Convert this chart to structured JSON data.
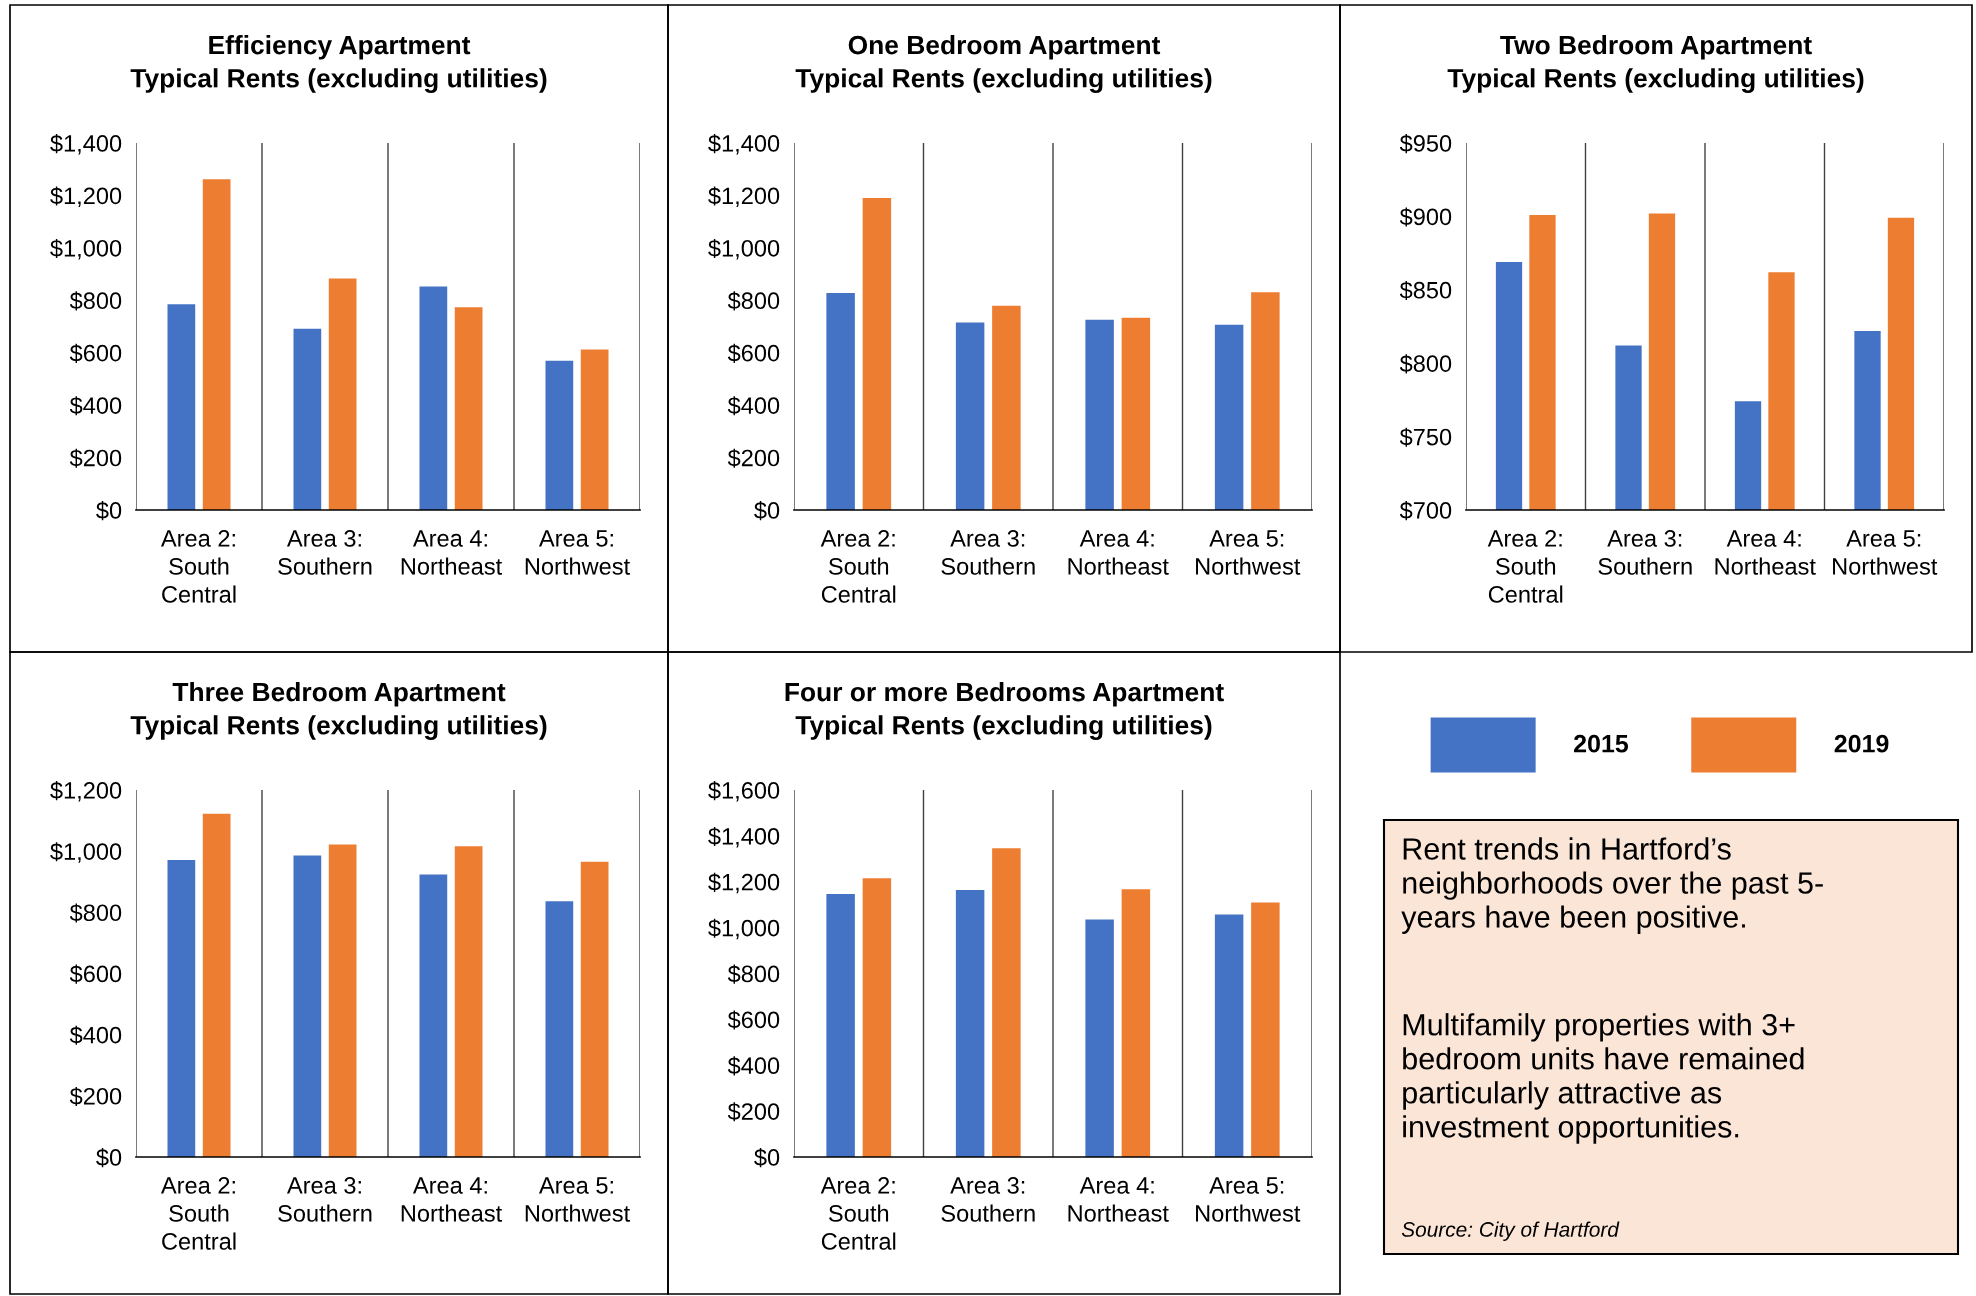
{
  "chart_data": [
    {
      "type": "bar",
      "title": "Efficiency Apartment\nTypical Rents (excluding utilities)",
      "categories": [
        "Area 2:\nSouth\nCentral",
        "Area 3:\nSouthern",
        "Area 4:\nNortheast",
        "Area 5:\nNorthwest"
      ],
      "series": [
        {
          "name": "2015",
          "color": "#4472c4",
          "values": [
            785,
            691,
            853,
            569
          ]
        },
        {
          "name": "2019",
          "color": "#ed7d31",
          "values": [
            1262,
            883,
            773,
            612
          ]
        }
      ],
      "ylim": [
        0,
        1400
      ],
      "yticks": [
        {
          "value": 0,
          "label": "$0"
        },
        {
          "value": 200,
          "label": "$200"
        },
        {
          "value": 400,
          "label": "$400"
        },
        {
          "value": 600,
          "label": "$600"
        },
        {
          "value": 800,
          "label": "$800"
        },
        {
          "value": 1000,
          "label": "$1,000"
        },
        {
          "value": 1200,
          "label": "$1,200"
        },
        {
          "value": 1400,
          "label": "$1,400"
        }
      ],
      "grid": "x",
      "legend": "bottom right"
    },
    {
      "type": "bar",
      "title": "One Bedroom Apartment\nTypical Rents (excluding utilities)",
      "categories": [
        "Area 2:\nSouth\nCentral",
        "Area 3:\nSouthern",
        "Area 4:\nNortheast",
        "Area 5:\nNorthwest"
      ],
      "series": [
        {
          "name": "2015",
          "color": "#4472c4",
          "values": [
            828,
            715,
            726,
            707
          ]
        },
        {
          "name": "2019",
          "color": "#ed7d31",
          "values": [
            1190,
            779,
            733,
            831
          ]
        }
      ],
      "ylim": [
        0,
        1400
      ],
      "yticks": [
        {
          "value": 0,
          "label": "$0"
        },
        {
          "value": 200,
          "label": "$200"
        },
        {
          "value": 400,
          "label": "$400"
        },
        {
          "value": 600,
          "label": "$600"
        },
        {
          "value": 800,
          "label": "$800"
        },
        {
          "value": 1000,
          "label": "$1,000"
        },
        {
          "value": 1200,
          "label": "$1,200"
        },
        {
          "value": 1400,
          "label": "$1,400"
        }
      ],
      "grid": "x"
    },
    {
      "type": "bar",
      "title": "Two Bedroom Apartment\nTypical Rents (excluding utilities)",
      "categories": [
        "Area 2:\nSouth\nCentral",
        "Area 3:\nSouthern",
        "Area 4:\nNortheast",
        "Area 5:\nNorthwest"
      ],
      "series": [
        {
          "name": "2015",
          "color": "#4472c4",
          "values": [
            869,
            812,
            774,
            822
          ]
        },
        {
          "name": "2019",
          "color": "#ed7d31",
          "values": [
            901,
            902,
            862,
            899
          ]
        }
      ],
      "ylim": [
        700,
        950
      ],
      "yticks": [
        {
          "value": 700,
          "label": "$700"
        },
        {
          "value": 750,
          "label": "$750"
        },
        {
          "value": 800,
          "label": "$800"
        },
        {
          "value": 850,
          "label": "$850"
        },
        {
          "value": 900,
          "label": "$900"
        },
        {
          "value": 950,
          "label": "$950"
        }
      ],
      "grid": "x"
    },
    {
      "type": "bar",
      "title": "Three Bedroom Apartment\nTypical Rents (excluding utilities)",
      "categories": [
        "Area 2:\nSouth\nCentral",
        "Area 3:\nSouthern",
        "Area 4:\nNortheast",
        "Area 5:\nNorthwest"
      ],
      "series": [
        {
          "name": "2015",
          "color": "#4472c4",
          "values": [
            971,
            986,
            924,
            836
          ]
        },
        {
          "name": "2019",
          "color": "#ed7d31",
          "values": [
            1122,
            1022,
            1016,
            965
          ]
        }
      ],
      "ylim": [
        0,
        1200
      ],
      "yticks": [
        {
          "value": 0,
          "label": "$0"
        },
        {
          "value": 200,
          "label": "$200"
        },
        {
          "value": 400,
          "label": "$400"
        },
        {
          "value": 600,
          "label": "$600"
        },
        {
          "value": 800,
          "label": "$800"
        },
        {
          "value": 1000,
          "label": "$1,000"
        },
        {
          "value": 1200,
          "label": "$1,200"
        }
      ],
      "grid": "x"
    },
    {
      "type": "bar",
      "title": "Four or more Bedrooms Apartment\nTypical Rents (excluding utilities)",
      "categories": [
        "Area 2:\nSouth\nCentral",
        "Area 3:\nSouthern",
        "Area 4:\nNortheast",
        "Area 5:\nNorthwest"
      ],
      "series": [
        {
          "name": "2015",
          "color": "#4472c4",
          "values": [
            1147,
            1164,
            1035,
            1057
          ]
        },
        {
          "name": "2019",
          "color": "#ed7d31",
          "values": [
            1215,
            1346,
            1167,
            1110
          ]
        }
      ],
      "ylim": [
        0,
        1600
      ],
      "yticks": [
        {
          "value": 0,
          "label": "$0"
        },
        {
          "value": 200,
          "label": "$200"
        },
        {
          "value": 400,
          "label": "$400"
        },
        {
          "value": 600,
          "label": "$600"
        },
        {
          "value": 800,
          "label": "$800"
        },
        {
          "value": 1000,
          "label": "$1,000"
        },
        {
          "value": 1200,
          "label": "$1,200"
        },
        {
          "value": 1400,
          "label": "$1,400"
        },
        {
          "value": 1600,
          "label": "$1,600"
        }
      ],
      "grid": "x"
    },
    {
      "type": "other",
      "annotations": [
        "Rent trends in Hartford’s\nneighborhoods over the past 5-\nyears have been positive.",
        "Multifamily properties with 3+\nbedroom units have remained\nparticularly attractive as\ninvestment opportunities.",
        "Source: City of Hartford"
      ]
    }
  ]
}
